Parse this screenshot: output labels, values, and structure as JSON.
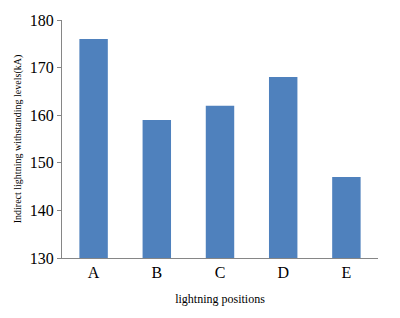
{
  "chart_data": {
    "type": "bar",
    "x_label": "lightning positions",
    "y_label": "Indirect lightning withstanding levels(kA)",
    "categories": [
      "A",
      "B",
      "C",
      "D",
      "E"
    ],
    "values": [
      176,
      159,
      162,
      168,
      147
    ],
    "color": "#4f81bd",
    "ylim": [
      130,
      180
    ],
    "yticks": [
      130,
      140,
      150,
      160,
      170,
      180
    ],
    "grid": false
  }
}
